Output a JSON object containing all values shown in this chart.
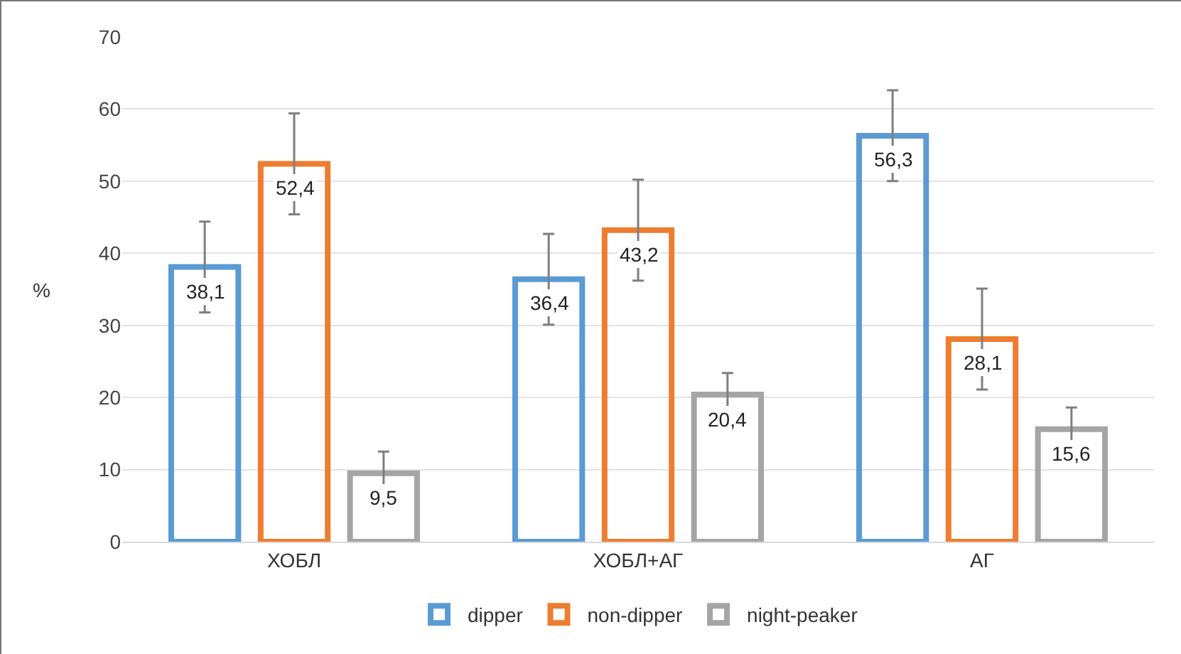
{
  "chart_data": {
    "type": "bar",
    "ylabel": "%",
    "categories": [
      "ХОБЛ",
      "ХОБЛ+АГ",
      "АГ"
    ],
    "series": [
      {
        "name": "dipper",
        "color": "#5b9bd5",
        "values": [
          38.1,
          36.4,
          56.3
        ],
        "value_labels": [
          "38,1",
          "36,4",
          "56,3"
        ],
        "errors": [
          6.3,
          6.3,
          6.3
        ]
      },
      {
        "name": "non-dipper",
        "color": "#ed7d31",
        "values": [
          52.4,
          43.2,
          28.1
        ],
        "value_labels": [
          "52,4",
          "43,2",
          "28,1"
        ],
        "errors": [
          7,
          7,
          7
        ]
      },
      {
        "name": "night-peaker",
        "color": "#a5a5a5",
        "values": [
          9.5,
          20.4,
          15.6
        ],
        "value_labels": [
          "9,5",
          "20,4",
          "15,6"
        ],
        "errors": [
          3,
          3,
          3
        ]
      }
    ],
    "ylim": [
      0,
      70
    ],
    "yticks": [
      0,
      10,
      20,
      30,
      40,
      50,
      60,
      70
    ],
    "grid": "y",
    "legend": "bottom"
  }
}
